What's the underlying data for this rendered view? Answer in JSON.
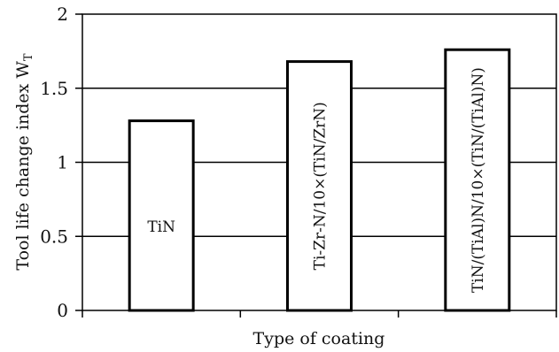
{
  "chart_data": {
    "type": "bar",
    "title": "",
    "xlabel": "Type of coating",
    "ylabel": "Tool life change index W",
    "ylabel_subscript": "T",
    "categories": [
      "TiN",
      "Ti-Zr-N/10×(TiN/ZrN)",
      "TiN/(TiAl)N/10×(TiN/(TiAl)N)"
    ],
    "values": [
      1.28,
      1.68,
      1.76
    ],
    "ylim": [
      0,
      2
    ],
    "yticks": [
      0,
      0.5,
      1,
      1.5,
      2
    ],
    "ytick_labels": [
      "0",
      "0.5",
      "1",
      "1.5",
      "2"
    ],
    "grid": true,
    "legend": "none",
    "colors": {
      "bar_fill": "#ffffff",
      "bar_stroke": "#000000",
      "grid": "#000000"
    }
  }
}
